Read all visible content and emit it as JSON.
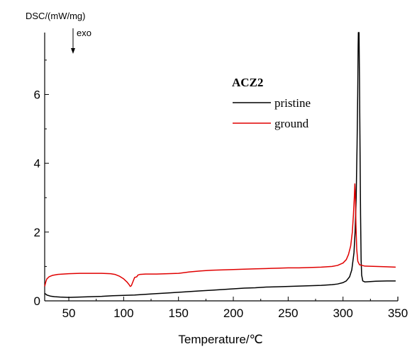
{
  "chart_data": {
    "type": "line",
    "title": "",
    "xlabel": "Temperature/℃",
    "ylabel": "DSC/(mW/mg)",
    "annotation": "exo",
    "legend_title": "ACZ2",
    "legend_position": "top-right",
    "xlim": [
      28,
      350
    ],
    "ylim": [
      0,
      7.8
    ],
    "xticks": [
      50,
      100,
      150,
      200,
      250,
      300,
      350
    ],
    "yticks": [
      0,
      2,
      4,
      6
    ],
    "grid": false,
    "series": [
      {
        "name": "pristine",
        "color": "#000000",
        "points": [
          [
            28,
            0.22
          ],
          [
            30,
            0.17
          ],
          [
            33,
            0.14
          ],
          [
            37,
            0.12
          ],
          [
            42,
            0.11
          ],
          [
            50,
            0.1
          ],
          [
            60,
            0.11
          ],
          [
            70,
            0.12
          ],
          [
            80,
            0.13
          ],
          [
            90,
            0.15
          ],
          [
            100,
            0.16
          ],
          [
            110,
            0.17
          ],
          [
            120,
            0.19
          ],
          [
            130,
            0.21
          ],
          [
            140,
            0.23
          ],
          [
            150,
            0.25
          ],
          [
            160,
            0.27
          ],
          [
            170,
            0.29
          ],
          [
            180,
            0.31
          ],
          [
            190,
            0.33
          ],
          [
            200,
            0.35
          ],
          [
            210,
            0.37
          ],
          [
            220,
            0.38
          ],
          [
            230,
            0.4
          ],
          [
            240,
            0.41
          ],
          [
            250,
            0.42
          ],
          [
            260,
            0.43
          ],
          [
            270,
            0.44
          ],
          [
            280,
            0.45
          ],
          [
            290,
            0.47
          ],
          [
            295,
            0.49
          ],
          [
            300,
            0.53
          ],
          [
            303,
            0.58
          ],
          [
            306,
            0.7
          ],
          [
            308,
            0.9
          ],
          [
            310,
            1.4
          ],
          [
            311,
            2.0
          ],
          [
            312,
            3.0
          ],
          [
            312.8,
            4.5
          ],
          [
            313.4,
            6.0
          ],
          [
            313.8,
            7.4
          ],
          [
            314.0,
            7.8
          ],
          [
            314.6,
            7.8
          ],
          [
            315.0,
            6.5
          ],
          [
            315.5,
            4.5
          ],
          [
            316.0,
            2.5
          ],
          [
            316.5,
            1.2
          ],
          [
            317.0,
            0.75
          ],
          [
            318,
            0.58
          ],
          [
            320,
            0.55
          ],
          [
            325,
            0.56
          ],
          [
            330,
            0.57
          ],
          [
            340,
            0.58
          ],
          [
            348,
            0.58
          ]
        ]
      },
      {
        "name": "ground",
        "color": "#e00000",
        "points": [
          [
            28,
            0.42
          ],
          [
            29,
            0.55
          ],
          [
            30,
            0.64
          ],
          [
            32,
            0.7
          ],
          [
            35,
            0.74
          ],
          [
            40,
            0.77
          ],
          [
            45,
            0.78
          ],
          [
            50,
            0.79
          ],
          [
            60,
            0.8
          ],
          [
            70,
            0.8
          ],
          [
            80,
            0.8
          ],
          [
            88,
            0.79
          ],
          [
            92,
            0.77
          ],
          [
            96,
            0.72
          ],
          [
            100,
            0.64
          ],
          [
            103,
            0.55
          ],
          [
            105,
            0.47
          ],
          [
            106,
            0.42
          ],
          [
            107,
            0.44
          ],
          [
            108,
            0.52
          ],
          [
            109,
            0.6
          ],
          [
            110,
            0.68
          ],
          [
            112,
            0.7
          ],
          [
            113,
            0.75
          ],
          [
            115,
            0.77
          ],
          [
            120,
            0.78
          ],
          [
            130,
            0.78
          ],
          [
            140,
            0.79
          ],
          [
            150,
            0.8
          ],
          [
            160,
            0.84
          ],
          [
            170,
            0.87
          ],
          [
            180,
            0.89
          ],
          [
            190,
            0.9
          ],
          [
            200,
            0.91
          ],
          [
            210,
            0.92
          ],
          [
            220,
            0.93
          ],
          [
            230,
            0.94
          ],
          [
            240,
            0.95
          ],
          [
            250,
            0.96
          ],
          [
            260,
            0.96
          ],
          [
            270,
            0.97
          ],
          [
            280,
            0.98
          ],
          [
            290,
            1.0
          ],
          [
            295,
            1.03
          ],
          [
            300,
            1.1
          ],
          [
            303,
            1.2
          ],
          [
            305,
            1.35
          ],
          [
            307,
            1.6
          ],
          [
            308.5,
            2.0
          ],
          [
            309.5,
            2.5
          ],
          [
            310.3,
            3.0
          ],
          [
            310.8,
            3.4
          ],
          [
            311.3,
            3.0
          ],
          [
            311.8,
            2.2
          ],
          [
            312.5,
            1.5
          ],
          [
            313.5,
            1.15
          ],
          [
            315,
            1.05
          ],
          [
            320,
            1.01
          ],
          [
            330,
            1.0
          ],
          [
            340,
            0.99
          ],
          [
            348,
            0.98
          ]
        ]
      }
    ]
  }
}
